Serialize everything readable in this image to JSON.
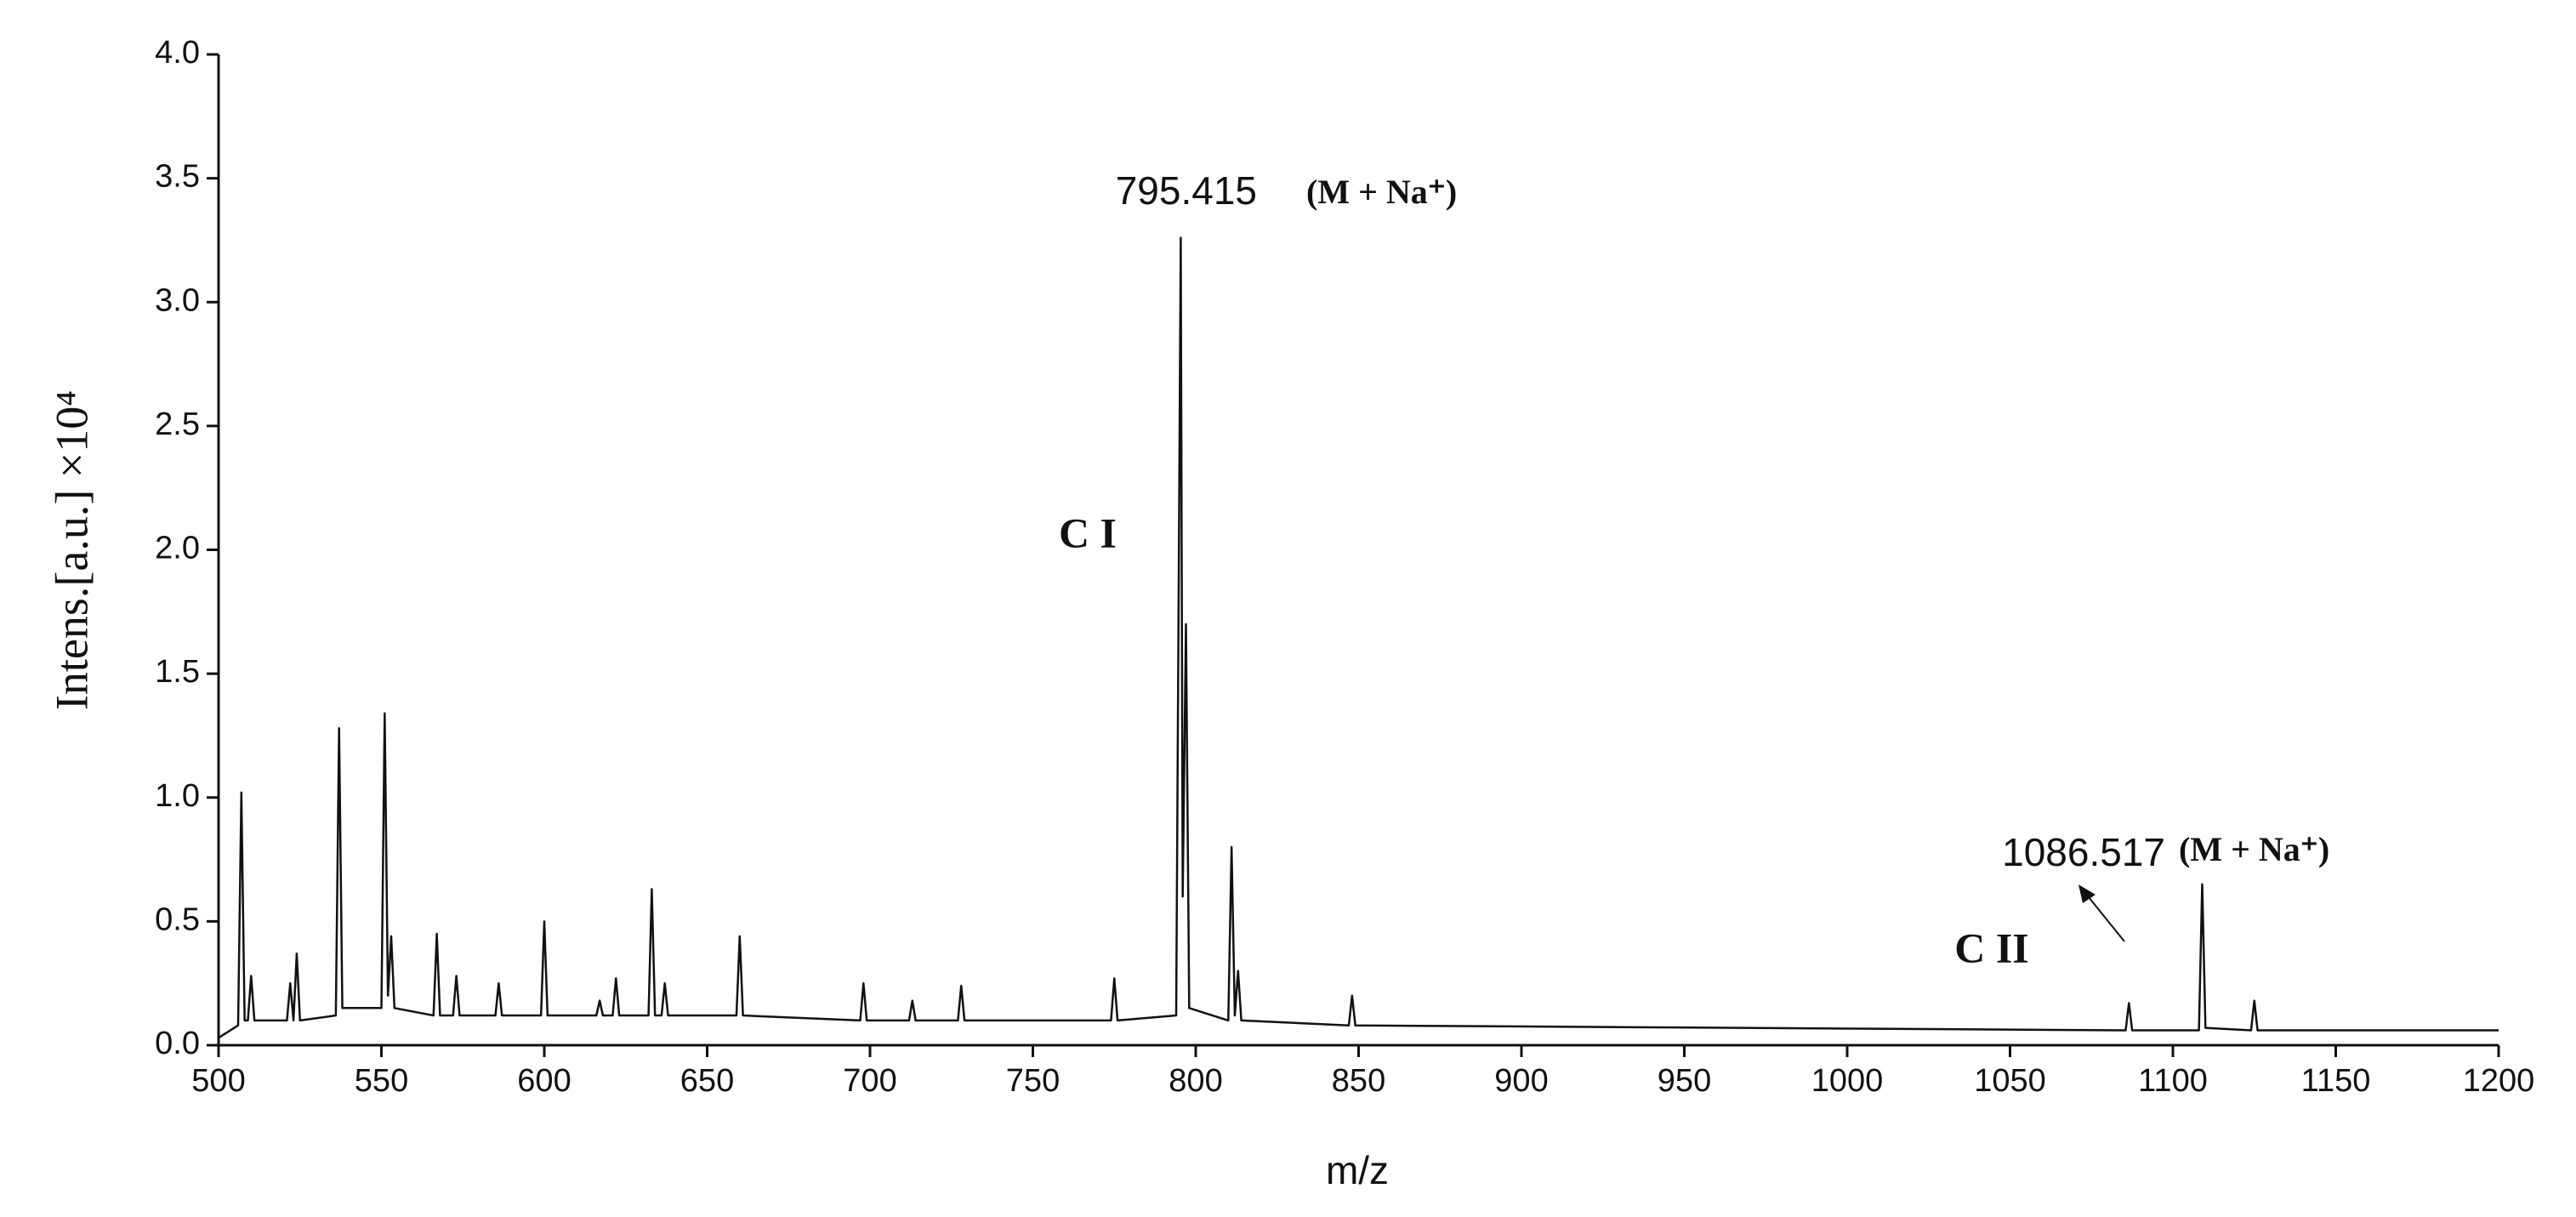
{
  "chart_data": {
    "type": "line",
    "x_label": "m/z",
    "y_label": "Intens.[a.u.] ×10⁴",
    "xlim": [
      500,
      1200
    ],
    "ylim": [
      0,
      4.0
    ],
    "xticks": [
      500,
      550,
      600,
      650,
      700,
      750,
      800,
      850,
      900,
      950,
      1000,
      1050,
      1100,
      1150,
      1200
    ],
    "yticks": [
      {
        "value": 0,
        "label": "0.0"
      },
      0.5,
      {
        "value": 1,
        "label": "1.0"
      },
      1.5,
      {
        "value": 2,
        "label": "2.0"
      },
      2.5,
      {
        "value": 3,
        "label": "3.0"
      },
      3.5,
      {
        "value": 4,
        "label": "4.0"
      }
    ],
    "series": [
      {
        "color": "#111111",
        "x": [
          500,
          506,
          507,
          508,
          509,
          510,
          511,
          521,
          522,
          523,
          524,
          525,
          536,
          537,
          538,
          550,
          551,
          552,
          553,
          554,
          566,
          567,
          568,
          572,
          573,
          574,
          585,
          586,
          587,
          599,
          600,
          601,
          616,
          617,
          618,
          621,
          622,
          623,
          632,
          633,
          634,
          636,
          637,
          638,
          659,
          660,
          661,
          697,
          698,
          699,
          712,
          713,
          714,
          727,
          728,
          729,
          774,
          775,
          776,
          794,
          795.4,
          796,
          797,
          798,
          810,
          811,
          812,
          813,
          814,
          847,
          848,
          849,
          1085.5,
          1086.5,
          1087.5,
          1108,
          1109,
          1110,
          1124,
          1125,
          1126,
          1200
        ],
        "values": [
          0.03,
          0.08,
          1.02,
          0.1,
          0.1,
          0.28,
          0.1,
          0.1,
          0.25,
          0.1,
          0.37,
          0.1,
          0.12,
          1.28,
          0.15,
          0.15,
          1.34,
          0.2,
          0.44,
          0.15,
          0.12,
          0.45,
          0.12,
          0.12,
          0.28,
          0.12,
          0.12,
          0.25,
          0.12,
          0.12,
          0.5,
          0.12,
          0.12,
          0.18,
          0.12,
          0.12,
          0.27,
          0.12,
          0.12,
          0.63,
          0.12,
          0.12,
          0.25,
          0.12,
          0.12,
          0.44,
          0.12,
          0.1,
          0.25,
          0.1,
          0.1,
          0.18,
          0.1,
          0.1,
          0.24,
          0.1,
          0.1,
          0.27,
          0.1,
          0.12,
          3.26,
          0.6,
          1.7,
          0.15,
          0.1,
          0.8,
          0.12,
          0.3,
          0.1,
          0.08,
          0.2,
          0.08,
          0.06,
          0.17,
          0.06,
          0.06,
          0.65,
          0.07,
          0.06,
          0.18,
          0.06,
          0.06
        ]
      }
    ],
    "annotations": [
      "795.415",
      "(M + Na⁺)",
      "C I",
      "C II",
      "1086.517",
      "(M + Na⁺)"
    ]
  }
}
